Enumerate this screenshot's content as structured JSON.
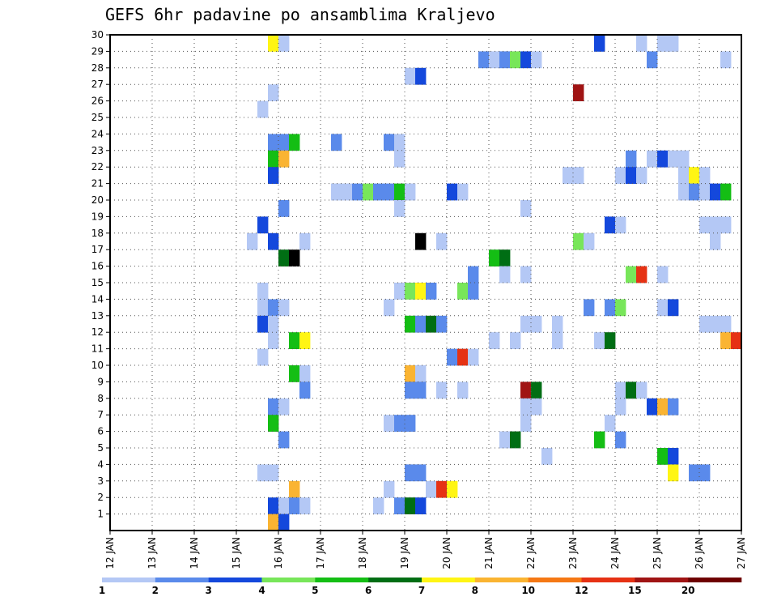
{
  "chart_data": {
    "type": "heatmap",
    "title": "GEFS 6hr padavine po ansamblima Kraljevo",
    "xlabel": "",
    "ylabel": "",
    "x_ticks": [
      "12 JAN",
      "13 JAN",
      "14 JAN",
      "15 JAN",
      "16 JAN",
      "17 JAN",
      "18 JAN",
      "19 JAN",
      "20 JAN",
      "21 JAN",
      "22 JAN",
      "23 JAN",
      "24 JAN",
      "25 JAN",
      "26 JAN",
      "27 JAN"
    ],
    "y_ticks": [
      "1",
      "2",
      "3",
      "4",
      "5",
      "6",
      "7",
      "8",
      "9",
      "10",
      "11",
      "12",
      "13",
      "14",
      "15",
      "16",
      "17",
      "18",
      "19",
      "20",
      "21",
      "22",
      "23",
      "24",
      "25",
      "26",
      "27",
      "28",
      "29",
      "30"
    ],
    "xlim": [
      0,
      60
    ],
    "ylim": [
      0,
      30
    ],
    "grid": true,
    "legend_placement": "bottom",
    "legend": {
      "labels": [
        "1",
        "2",
        "3",
        "4",
        "5",
        "6",
        "7",
        "8",
        "10",
        "12",
        "15",
        "20"
      ],
      "colors": [
        "#b4c8f5",
        "#5a8aeb",
        "#1448dc",
        "#78e65a",
        "#14be14",
        "#006e14",
        "#fff514",
        "#fab432",
        "#f57814",
        "#e63214",
        "#a01414",
        "#6e0000"
      ]
    },
    "cells": [
      [
        16,
        30,
        7
      ],
      [
        17,
        30,
        1
      ],
      [
        47,
        30,
        3
      ],
      [
        51,
        30,
        1
      ],
      [
        53,
        30,
        1
      ],
      [
        54,
        30,
        1
      ],
      [
        36,
        29,
        2
      ],
      [
        37,
        29,
        1
      ],
      [
        38,
        29,
        2
      ],
      [
        39,
        29,
        4
      ],
      [
        40,
        29,
        3
      ],
      [
        41,
        29,
        1
      ],
      [
        52,
        29,
        2
      ],
      [
        59,
        29,
        1
      ],
      [
        29,
        28,
        1
      ],
      [
        30,
        28,
        3
      ],
      [
        16,
        27,
        1
      ],
      [
        45,
        27,
        11
      ],
      [
        15,
        26,
        1
      ],
      [
        16,
        24,
        2
      ],
      [
        17,
        24,
        2
      ],
      [
        18,
        24,
        5
      ],
      [
        22,
        24,
        2
      ],
      [
        27,
        24,
        2
      ],
      [
        28,
        24,
        1
      ],
      [
        16,
        23,
        5
      ],
      [
        17,
        23,
        8
      ],
      [
        28,
        23,
        1
      ],
      [
        50,
        23,
        2
      ],
      [
        52,
        23,
        1
      ],
      [
        53,
        23,
        3
      ],
      [
        54,
        23,
        1
      ],
      [
        55,
        23,
        1
      ],
      [
        16,
        22,
        3
      ],
      [
        44,
        22,
        1
      ],
      [
        45,
        22,
        1
      ],
      [
        49,
        22,
        1
      ],
      [
        50,
        22,
        3
      ],
      [
        51,
        22,
        1
      ],
      [
        55,
        22,
        1
      ],
      [
        56,
        22,
        7
      ],
      [
        57,
        22,
        1
      ],
      [
        22,
        21,
        1
      ],
      [
        23,
        21,
        1
      ],
      [
        24,
        21,
        2
      ],
      [
        25,
        21,
        4
      ],
      [
        26,
        21,
        2
      ],
      [
        27,
        21,
        2
      ],
      [
        28,
        21,
        5
      ],
      [
        29,
        21,
        1
      ],
      [
        33,
        21,
        3
      ],
      [
        34,
        21,
        1
      ],
      [
        55,
        21,
        1
      ],
      [
        56,
        21,
        2
      ],
      [
        57,
        21,
        1
      ],
      [
        58,
        21,
        3
      ],
      [
        59,
        21,
        5
      ],
      [
        17,
        20,
        2
      ],
      [
        28,
        20,
        1
      ],
      [
        40,
        20,
        1
      ],
      [
        15,
        19,
        3
      ],
      [
        48,
        19,
        3
      ],
      [
        49,
        19,
        1
      ],
      [
        57,
        19,
        1
      ],
      [
        58,
        19,
        1
      ],
      [
        59,
        19,
        1
      ],
      [
        14,
        18,
        1
      ],
      [
        16,
        18,
        3
      ],
      [
        19,
        18,
        1
      ],
      [
        30,
        18,
        13
      ],
      [
        32,
        18,
        1
      ],
      [
        45,
        18,
        4
      ],
      [
        46,
        18,
        1
      ],
      [
        58,
        18,
        1
      ],
      [
        17,
        17,
        6
      ],
      [
        18,
        17,
        13
      ],
      [
        37,
        17,
        5
      ],
      [
        38,
        17,
        6
      ],
      [
        35,
        16,
        2
      ],
      [
        38,
        16,
        1
      ],
      [
        40,
        16,
        1
      ],
      [
        50,
        16,
        4
      ],
      [
        51,
        16,
        10
      ],
      [
        53,
        16,
        1
      ],
      [
        15,
        15,
        1
      ],
      [
        28,
        15,
        1
      ],
      [
        29,
        15,
        4
      ],
      [
        30,
        15,
        7
      ],
      [
        31,
        15,
        2
      ],
      [
        34,
        15,
        4
      ],
      [
        35,
        15,
        2
      ],
      [
        15,
        14,
        1
      ],
      [
        16,
        14,
        2
      ],
      [
        17,
        14,
        1
      ],
      [
        27,
        14,
        1
      ],
      [
        46,
        14,
        2
      ],
      [
        48,
        14,
        2
      ],
      [
        49,
        14,
        4
      ],
      [
        53,
        14,
        1
      ],
      [
        54,
        14,
        3
      ],
      [
        15,
        13,
        3
      ],
      [
        16,
        13,
        1
      ],
      [
        29,
        13,
        5
      ],
      [
        30,
        13,
        2
      ],
      [
        31,
        13,
        6
      ],
      [
        32,
        13,
        2
      ],
      [
        40,
        13,
        1
      ],
      [
        41,
        13,
        1
      ],
      [
        43,
        13,
        1
      ],
      [
        57,
        13,
        1
      ],
      [
        58,
        13,
        1
      ],
      [
        59,
        13,
        1
      ],
      [
        16,
        12,
        1
      ],
      [
        18,
        12,
        5
      ],
      [
        19,
        12,
        7
      ],
      [
        37,
        12,
        1
      ],
      [
        39,
        12,
        1
      ],
      [
        43,
        12,
        1
      ],
      [
        47,
        12,
        1
      ],
      [
        48,
        12,
        6
      ],
      [
        59,
        12,
        8
      ],
      [
        60,
        12,
        10
      ],
      [
        15,
        11,
        1
      ],
      [
        33,
        11,
        2
      ],
      [
        34,
        11,
        10
      ],
      [
        35,
        11,
        1
      ],
      [
        18,
        10,
        5
      ],
      [
        19,
        10,
        1
      ],
      [
        29,
        10,
        8
      ],
      [
        30,
        10,
        1
      ],
      [
        19,
        9,
        2
      ],
      [
        29,
        9,
        2
      ],
      [
        30,
        9,
        2
      ],
      [
        32,
        9,
        1
      ],
      [
        34,
        9,
        1
      ],
      [
        40,
        9,
        11
      ],
      [
        41,
        9,
        6
      ],
      [
        49,
        9,
        1
      ],
      [
        50,
        9,
        6
      ],
      [
        51,
        9,
        1
      ],
      [
        16,
        8,
        2
      ],
      [
        17,
        8,
        1
      ],
      [
        40,
        8,
        1
      ],
      [
        41,
        8,
        1
      ],
      [
        49,
        8,
        1
      ],
      [
        52,
        8,
        3
      ],
      [
        53,
        8,
        8
      ],
      [
        54,
        8,
        2
      ],
      [
        16,
        7,
        5
      ],
      [
        27,
        7,
        1
      ],
      [
        28,
        7,
        2
      ],
      [
        29,
        7,
        2
      ],
      [
        40,
        7,
        1
      ],
      [
        48,
        7,
        1
      ],
      [
        17,
        6,
        2
      ],
      [
        38,
        6,
        1
      ],
      [
        39,
        6,
        6
      ],
      [
        47,
        6,
        5
      ],
      [
        49,
        6,
        2
      ],
      [
        42,
        5,
        1
      ],
      [
        53,
        5,
        5
      ],
      [
        54,
        5,
        3
      ],
      [
        15,
        4,
        1
      ],
      [
        16,
        4,
        1
      ],
      [
        29,
        4,
        2
      ],
      [
        30,
        4,
        2
      ],
      [
        54,
        4,
        7
      ],
      [
        56,
        4,
        2
      ],
      [
        57,
        4,
        2
      ],
      [
        18,
        3,
        8
      ],
      [
        27,
        3,
        1
      ],
      [
        31,
        3,
        1
      ],
      [
        32,
        3,
        10
      ],
      [
        33,
        3,
        7
      ],
      [
        16,
        2,
        3
      ],
      [
        17,
        2,
        1
      ],
      [
        18,
        2,
        2
      ],
      [
        19,
        2,
        1
      ],
      [
        26,
        2,
        1
      ],
      [
        28,
        2,
        2
      ],
      [
        29,
        2,
        6
      ],
      [
        30,
        2,
        3
      ],
      [
        16,
        1,
        8
      ],
      [
        17,
        1,
        3
      ]
    ]
  }
}
